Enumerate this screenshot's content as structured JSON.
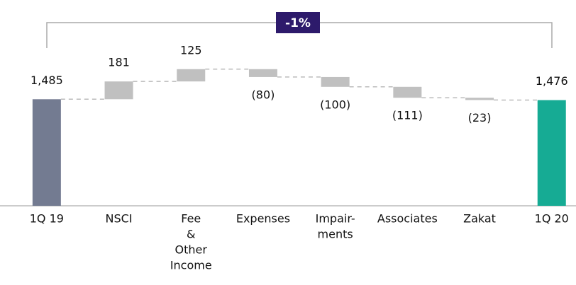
{
  "chart_data": {
    "type": "waterfall",
    "categories": [
      [
        "1Q 19"
      ],
      [
        "NSCI"
      ],
      [
        "Fee",
        "&",
        "Other",
        "Income"
      ],
      [
        "Expenses"
      ],
      [
        "Impair-",
        "ments"
      ],
      [
        "Associates"
      ],
      [
        "Zakat"
      ],
      [
        "1Q 20"
      ]
    ],
    "values": [
      1485,
      181,
      125,
      -80,
      -100,
      -111,
      -23,
      1476
    ],
    "value_labels": [
      "1,485",
      "181",
      "125",
      "(80)",
      "(100)",
      "(111)",
      "(23)",
      "1,476"
    ],
    "totals": [
      true,
      false,
      false,
      false,
      false,
      false,
      false,
      true
    ],
    "colors": [
      "#737b91",
      "#c0c0c0",
      "#c0c0c0",
      "#c0c0c0",
      "#c0c0c0",
      "#c0c0c0",
      "#c0c0c0",
      "#16ab94"
    ],
    "ylim": [
      400,
      2200
    ],
    "annotation": {
      "text": "-1%",
      "color": "#2d1a6b"
    }
  }
}
